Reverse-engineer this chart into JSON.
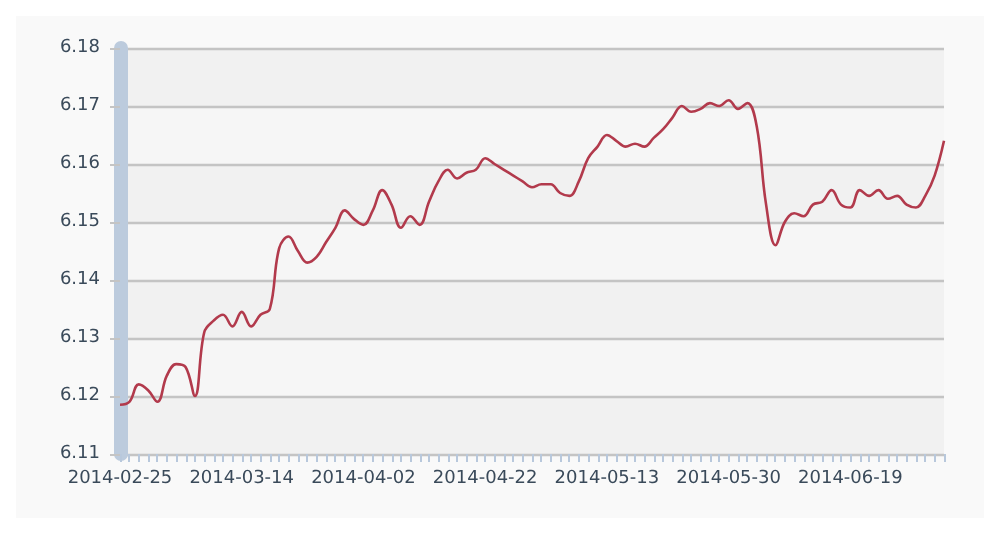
{
  "chart_data": {
    "type": "line",
    "categories": [
      "2014-02-25",
      null,
      null,
      null,
      null,
      null,
      null,
      null,
      null,
      null,
      null,
      null,
      null,
      "2014-03-14",
      null,
      null,
      null,
      null,
      null,
      null,
      null,
      null,
      null,
      null,
      null,
      null,
      "2014-04-02",
      null,
      null,
      null,
      null,
      null,
      null,
      null,
      null,
      null,
      null,
      null,
      null,
      "2014-04-22",
      null,
      null,
      null,
      null,
      null,
      null,
      null,
      null,
      null,
      null,
      null,
      null,
      "2014-05-13",
      null,
      null,
      null,
      null,
      null,
      null,
      null,
      null,
      null,
      null,
      null,
      null,
      "2014-05-30",
      null,
      null,
      null,
      null,
      null,
      null,
      null,
      null,
      null,
      null,
      null,
      null,
      "2014-06-19",
      null,
      null,
      null,
      null,
      null,
      null,
      null,
      null,
      null,
      null
    ],
    "values": [
      6.1185,
      6.119,
      6.122,
      6.121,
      6.119,
      6.1235,
      6.1255,
      6.125,
      6.12,
      6.131,
      6.133,
      6.134,
      6.132,
      6.1345,
      6.132,
      6.134,
      6.135,
      6.1455,
      6.1475,
      6.145,
      6.143,
      6.144,
      6.1465,
      6.149,
      6.152,
      6.1505,
      6.1495,
      6.152,
      6.1555,
      6.153,
      6.149,
      6.151,
      6.1495,
      6.1535,
      6.157,
      6.159,
      6.1575,
      6.1585,
      6.159,
      6.161,
      6.16,
      6.159,
      6.158,
      6.157,
      6.156,
      6.1565,
      6.1565,
      6.155,
      6.1545,
      6.157,
      6.161,
      6.163,
      6.165,
      6.164,
      6.163,
      6.1635,
      6.163,
      6.1645,
      6.166,
      6.168,
      6.17,
      6.169,
      6.1695,
      6.1705,
      6.17,
      6.171,
      6.1695,
      6.1705,
      6.1665,
      6.153,
      6.146,
      6.15,
      6.1515,
      6.151,
      6.153,
      6.1535,
      6.1555,
      6.153,
      6.1525,
      6.1555,
      6.1545,
      6.1555,
      6.154,
      6.1545,
      6.153,
      6.1525,
      6.1545,
      6.158,
      6.164
    ],
    "color": "#b23a4c",
    "ylim": [
      6.11,
      6.18
    ],
    "yticks": [
      6.11,
      6.12,
      6.13,
      6.14,
      6.15,
      6.16,
      6.17,
      6.18
    ],
    "grid": "y",
    "marker": "none"
  }
}
